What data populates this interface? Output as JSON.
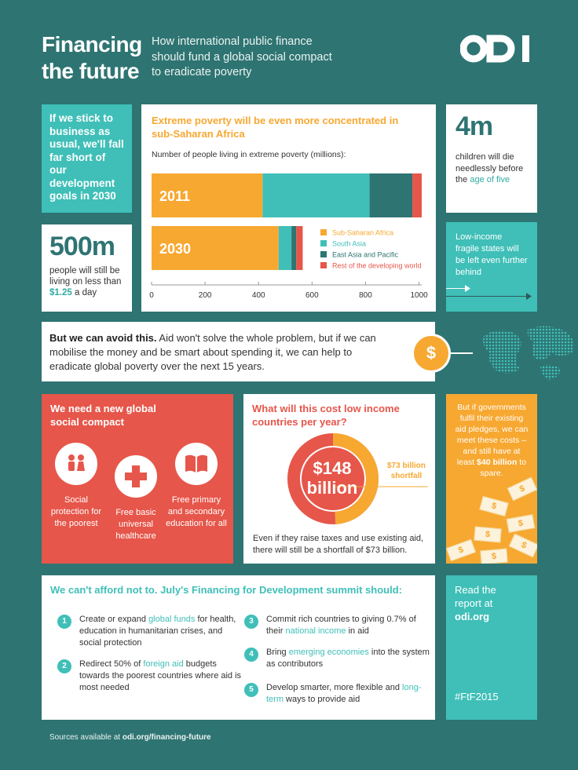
{
  "header": {
    "title_line1": "Financing",
    "title_line2": "the future",
    "subtitle_line1": "How international public finance",
    "subtitle_line2": "should fund a global social compact",
    "subtitle_line3": "to eradicate poverty",
    "logo": "odi"
  },
  "left_top": {
    "text": "If we stick to business as usual, we'll fall far short of our development goals in 2030"
  },
  "left_bottom": {
    "big": "500m",
    "text_a": "people will still be living on less than ",
    "amount": "$1.25",
    "text_b": " a day"
  },
  "chart_data": {
    "type": "bar",
    "orientation": "horizontal-stacked",
    "title": "Extreme poverty will be even more concentrated in sub-Saharan Africa",
    "ylabel": "Number of people living in extreme poverty (millions):",
    "categories": [
      "2011",
      "2030"
    ],
    "series": [
      {
        "name": "Sub-Saharan Africa",
        "values": [
          415,
          475
        ],
        "color": "#f7a831"
      },
      {
        "name": "South Asia",
        "values": [
          400,
          48
        ],
        "color": "#3fbfb8"
      },
      {
        "name": "East Asia and Pacific",
        "values": [
          160,
          18
        ],
        "color": "#2e7472"
      },
      {
        "name": "Rest of the developing world",
        "values": [
          35,
          24
        ],
        "color": "#e6564a"
      }
    ],
    "x_ticks": [
      "0",
      "200",
      "400",
      "600",
      "800",
      "1000"
    ],
    "xlim": [
      0,
      1010
    ]
  },
  "right_top": {
    "big": "4m",
    "text_a": "children will die needlessly before the ",
    "highlight": "age of five"
  },
  "right_mid": {
    "text": "Low-income fragile states will be left even further behind"
  },
  "banner": {
    "bold": "But we can avoid this.",
    "text": " Aid won't solve the whole problem, but if we can mobilise the money and be smart about spending it, we can help to eradicate global poverty over the next 15 years.",
    "coin": "$"
  },
  "compact": {
    "heading": "We need a new global social compact",
    "items": [
      {
        "label": "Social protection for the poorest",
        "icon": "people-icon"
      },
      {
        "label": "Free basic universal healthcare",
        "icon": "cross-icon"
      },
      {
        "label": "Free primary and secondary education for all",
        "icon": "book-icon"
      }
    ]
  },
  "cost": {
    "heading": "What will this cost low income countries per year?",
    "center_line1": "$148",
    "center_line2": "billion",
    "shortfall_line1": "$73 billion",
    "shortfall_line2": "shortfall",
    "shortfall_fraction": 0.49,
    "footer": "Even if they raise taxes and use existing aid, there will still be a shortfall of $73 billion."
  },
  "orange": {
    "text_a": "But if governments fulfil their existing aid pledges, we can meet these costs – and still have at least ",
    "bold": "$40 billion",
    "text_b": " to spare.",
    "bill": "$"
  },
  "summit": {
    "heading": "We can't afford not to. July's Financing for Development summit should:",
    "items": [
      {
        "n": "1",
        "pre": "Create or expand ",
        "link": "global funds",
        "post": " for health, education in humanitarian crises, and social protection"
      },
      {
        "n": "2",
        "pre": "Redirect 50% of ",
        "link": "foreign aid",
        "post": " budgets towards the poorest countries where aid is most needed"
      },
      {
        "n": "3",
        "pre": "Commit rich countries to giving 0.7% of their ",
        "link": "national income",
        "post": " in aid"
      },
      {
        "n": "4",
        "pre": "Bring ",
        "link": "emerging economies",
        "post": " into the system as contributors"
      },
      {
        "n": "5",
        "pre": "Develop smarter, more flexible and ",
        "link": "long-term",
        "post": " ways to provide aid"
      }
    ]
  },
  "read": {
    "line1": "Read the",
    "line2": "report at",
    "line3": "odi.org",
    "hashtag": "#FtF2015"
  },
  "sources": {
    "pre": "Sources available at ",
    "link": "odi.org/financing-future"
  }
}
